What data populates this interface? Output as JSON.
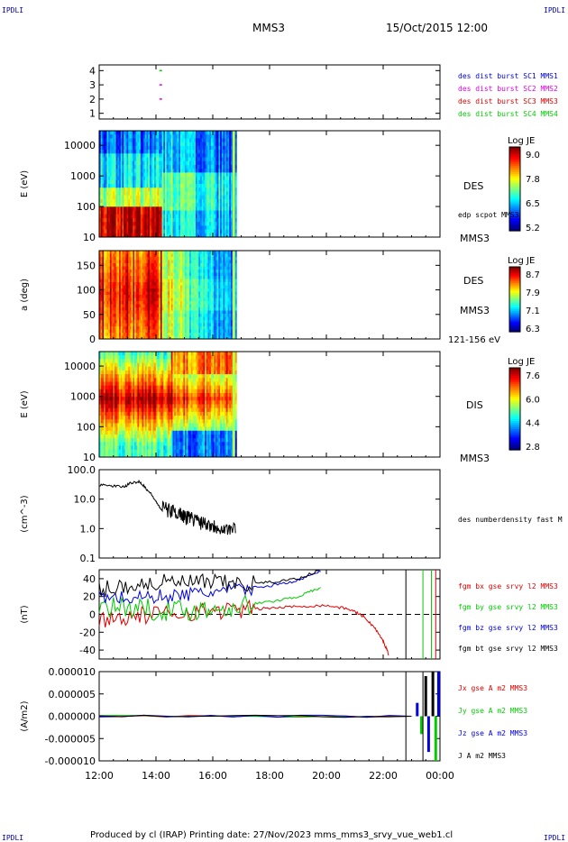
{
  "header": {
    "corner_tl": "IPDLI",
    "corner_tr": "IPDLI",
    "corner_bl": "IPDLI",
    "corner_br": "IPDLI",
    "spacecraft": "MMS3",
    "date": "15/Oct/2015 12:00"
  },
  "footer": {
    "text": "Produced by cl (IRAP)   Printing date: 27/Nov/2023   mms_mms3_srvy_vue_web1.cl"
  },
  "x_axis": {
    "ticks": [
      "12:00",
      "14:00",
      "16:00",
      "18:00",
      "20:00",
      "22:00",
      "00:00"
    ],
    "range_hours": [
      12,
      24
    ]
  },
  "colors": {
    "red": "#e00000",
    "green": "#00cc00",
    "blue": "#0000e0",
    "magenta": "#e000e0",
    "black": "#000000"
  },
  "chart_data": [
    {
      "type": "scatter",
      "panel": "burst",
      "ylim": [
        0.6,
        4.4
      ],
      "yticks": [
        "4",
        "3",
        "2",
        "1"
      ],
      "legend": [
        {
          "label": "des dist burst SC1 MMS1",
          "color": "#0000e0"
        },
        {
          "label": "des dist burst SC2 MMS2",
          "color": "#e000e0"
        },
        {
          "label": "des dist burst SC3 MMS3",
          "color": "#e00000"
        },
        {
          "label": "des dist burst SC4 MMS4",
          "color": "#00cc00"
        }
      ],
      "points": [
        {
          "x": 14.15,
          "y": 4,
          "color": "#00cc00"
        },
        {
          "x": 14.15,
          "y": 3,
          "color": "#e000e0"
        },
        {
          "x": 14.15,
          "y": 2,
          "color": "#e000e0"
        }
      ]
    },
    {
      "type": "heatmap",
      "panel": "des_energy",
      "ylabel": "E (eV)",
      "yscale": "log",
      "yticks": [
        "10000",
        "1000",
        "100",
        "10"
      ],
      "ylim": [
        10,
        30000
      ],
      "colorbar": {
        "title": "Log JE",
        "ticks": [
          "9.0",
          "7.8",
          "6.5",
          "5.2"
        ],
        "range": [
          5.2,
          9.2
        ]
      },
      "labels": [
        "DES",
        "edp scpot MMS3",
        "MMS3"
      ],
      "data_end_hour": 16.85
    },
    {
      "type": "heatmap",
      "panel": "des_pitch",
      "ylabel": "a (deg)",
      "yticks": [
        "150",
        "100",
        "50",
        "0"
      ],
      "ylim": [
        0,
        180
      ],
      "colorbar": {
        "title": "Log JE",
        "ticks": [
          "8.7",
          "7.9",
          "7.1",
          "6.3"
        ],
        "range": [
          6.3,
          8.9
        ]
      },
      "labels": [
        "DES",
        "MMS3",
        "121-156 eV"
      ],
      "data_end_hour": 16.85
    },
    {
      "type": "heatmap",
      "panel": "dis_energy",
      "ylabel": "E (eV)",
      "yscale": "log",
      "yticks": [
        "10000",
        "1000",
        "100",
        "10"
      ],
      "ylim": [
        10,
        30000
      ],
      "colorbar": {
        "title": "Log JE",
        "ticks": [
          "7.6",
          "6.0",
          "4.4",
          "2.8"
        ],
        "range": [
          2.8,
          8.0
        ]
      },
      "labels": [
        "DIS",
        "MMS3"
      ],
      "data_end_hour": 16.85
    },
    {
      "type": "line",
      "panel": "density",
      "ylabel": "(cm^-3)",
      "yscale": "log",
      "yticks": [
        "100.0",
        "10.0",
        "1.0",
        "0.1"
      ],
      "ylim": [
        0.1,
        100
      ],
      "series": [
        {
          "name": "des numberdensity fast M",
          "color": "#000000",
          "x": [
            12.0,
            12.5,
            12.9,
            13.1,
            13.4,
            13.7,
            14.0,
            14.2,
            14.5,
            14.8,
            15.0,
            15.3,
            15.6,
            15.9,
            16.2,
            16.5,
            16.8
          ],
          "y": [
            30,
            28,
            26,
            35,
            40,
            20,
            8,
            4,
            3,
            2.5,
            2,
            1.6,
            1.3,
            1.0,
            0.8,
            0.7,
            0.7
          ]
        }
      ]
    },
    {
      "type": "line",
      "panel": "fgm",
      "ylabel": "(nT)",
      "ylim": [
        -50,
        50
      ],
      "yticks": [
        "40",
        "20",
        "0",
        "-20",
        "-40"
      ],
      "series": [
        {
          "name": "fgm bx gse srvy l2 MMS3",
          "color": "#e00000",
          "x": [
            12.0,
            13.0,
            14.0,
            15.0,
            16.0,
            17.0,
            18.0,
            19.0,
            20.0,
            20.8,
            21.3,
            21.7,
            22.0,
            22.2
          ],
          "y": [
            -5,
            -3,
            0,
            2,
            4,
            5,
            7,
            9,
            10,
            6,
            -2,
            -15,
            -30,
            -45
          ]
        },
        {
          "name": "fgm by gse srvy l2 MMS3",
          "color": "#00cc00",
          "x": [
            12.0,
            13.0,
            14.0,
            15.0,
            16.0,
            17.0,
            18.0,
            19.0,
            19.8
          ],
          "y": [
            10,
            8,
            5,
            4,
            6,
            10,
            14,
            20,
            30
          ]
        },
        {
          "name": "fgm bz gse srvy l2 MMS3",
          "color": "#0000e0",
          "x": [
            12.0,
            13.0,
            14.0,
            15.0,
            16.0,
            17.0,
            18.0,
            19.0,
            19.8
          ],
          "y": [
            20,
            18,
            20,
            22,
            25,
            28,
            32,
            38,
            48
          ]
        },
        {
          "name": "fgm bt gse srvy l2 MMS3",
          "color": "#000000",
          "x": [
            12.0,
            13.0,
            14.0,
            15.0,
            16.0,
            17.0,
            18.0,
            19.0,
            19.8
          ],
          "y": [
            28,
            32,
            35,
            36,
            35,
            34,
            36,
            40,
            50
          ]
        }
      ]
    },
    {
      "type": "line",
      "panel": "current",
      "ylabel": "(A/m2)",
      "ylim": [
        -1e-05,
        1e-05
      ],
      "yticks": [
        "0.000010",
        "0.000005",
        "0.000000",
        "-0.000005",
        "-0.000010"
      ],
      "series": [
        {
          "name": "Jx gse A m2 MMS3",
          "color": "#e00000",
          "x": [
            12,
            23
          ],
          "y": [
            0,
            0
          ]
        },
        {
          "name": "Jy gse A m2 MMS3",
          "color": "#00cc00",
          "x": [
            12,
            23
          ],
          "y": [
            0,
            0
          ]
        },
        {
          "name": "Jz gse A m2 MMS3",
          "color": "#0000e0",
          "x": [
            12,
            23
          ],
          "y": [
            0,
            0
          ]
        },
        {
          "name": "J A m2 MMS3",
          "color": "#000000",
          "x": [
            12,
            23
          ],
          "y": [
            0,
            0
          ]
        }
      ]
    }
  ]
}
